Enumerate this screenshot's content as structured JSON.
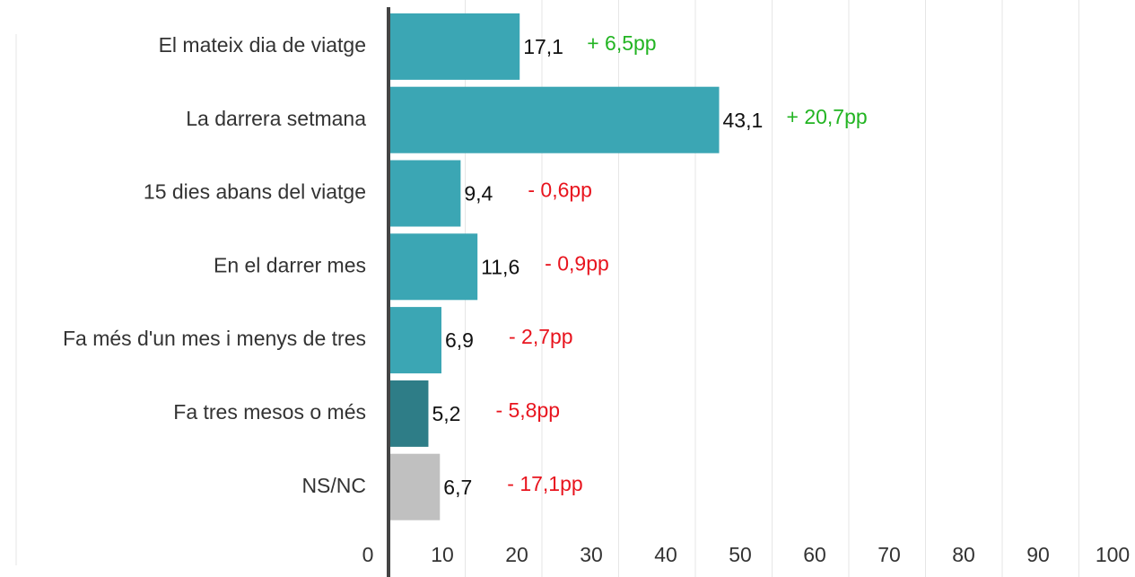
{
  "chart_data": {
    "type": "bar",
    "orientation": "horizontal",
    "categories": [
      "El mateix dia de viatge",
      "La darrera setmana",
      "15 dies abans del viatge",
      "En el darrer mes",
      "Fa més d'un mes i menys de tres",
      "Fa tres mesos o més",
      "NS/NC"
    ],
    "values": [
      17.1,
      43.1,
      9.4,
      11.6,
      6.9,
      5.2,
      6.7
    ],
    "value_labels": [
      "17,1",
      "43,1",
      "9,4",
      "11,6",
      "6,9",
      "5,2",
      "6,7"
    ],
    "colors": [
      "#3ba6b4",
      "#3ba6b4",
      "#3ba6b4",
      "#3ba6b4",
      "#3ba6b4",
      "#2e7d87",
      "#c0c0c0"
    ],
    "annotations": [
      {
        "text": "+ 6,5pp",
        "color": "#22b422"
      },
      {
        "text": "+ 20,7pp",
        "color": "#22b422"
      },
      {
        "text": "- 0,6pp",
        "color": "#e8141e"
      },
      {
        "text": "- 0,9pp",
        "color": "#e8141e"
      },
      {
        "text": "- 2,7pp",
        "color": "#e8141e"
      },
      {
        "text": "- 5,8pp",
        "color": "#e8141e"
      },
      {
        "text": "- 17,1pp",
        "color": "#e8141e"
      }
    ],
    "xlim": [
      0,
      100
    ],
    "xticks": [
      0,
      10,
      20,
      30,
      40,
      50,
      60,
      70,
      80,
      90,
      100
    ],
    "grid": true
  }
}
